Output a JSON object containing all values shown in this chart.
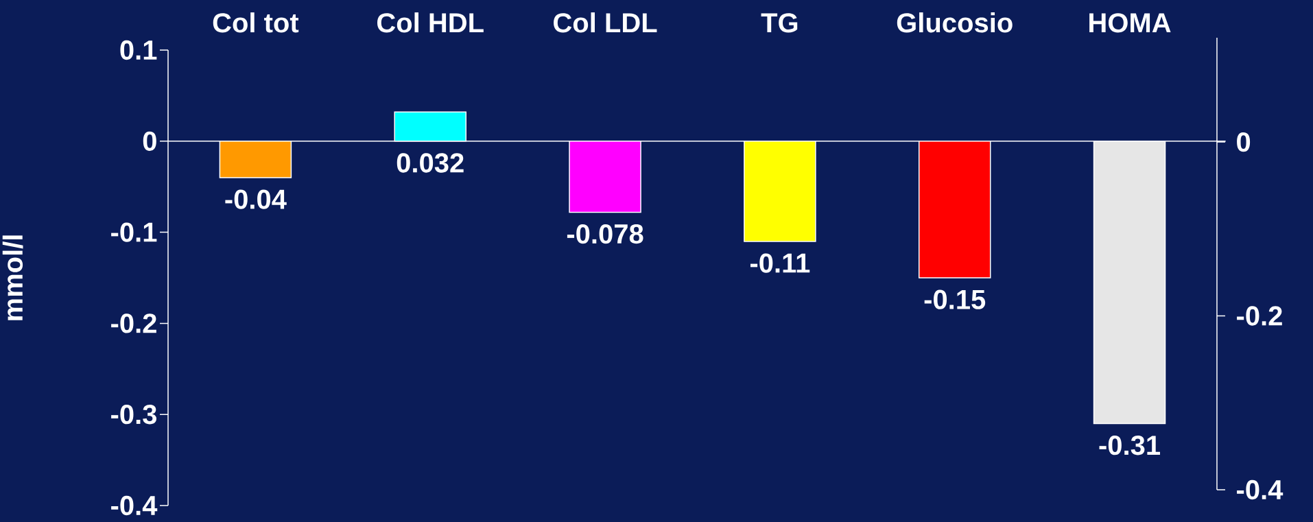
{
  "chart_data": {
    "type": "bar",
    "ylabel": "mmol/l",
    "categories": [
      "Col tot",
      "Col HDL",
      "Col LDL",
      "TG",
      "Glucosio",
      "HOMA"
    ],
    "values": [
      -0.04,
      0.032,
      -0.078,
      -0.11,
      -0.15,
      -0.31
    ],
    "colors": [
      "#ff9900",
      "#00ffff",
      "#ff00ff",
      "#ffff00",
      "#ff0000",
      "#e6e6e6"
    ],
    "ylim": [
      -0.4,
      0.1
    ],
    "yticks": [
      -0.4,
      -0.3,
      -0.2,
      -0.1,
      0,
      0.1
    ],
    "y2lim": [
      -0.4,
      0.12
    ],
    "y2ticks": [
      -0.4,
      -0.2,
      0
    ],
    "data_labels": true
  }
}
